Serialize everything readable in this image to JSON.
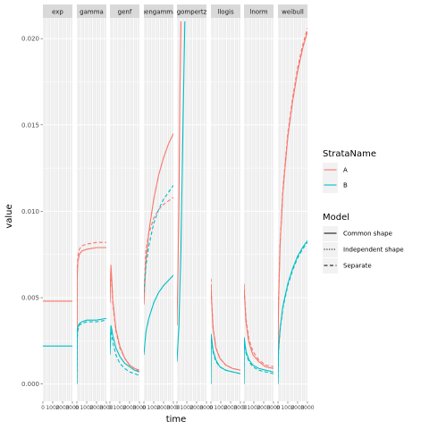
{
  "chart_data": {
    "type": "line",
    "title": "",
    "xlabel": "time",
    "ylabel": "value",
    "ylim": [
      -0.001,
      0.0212
    ],
    "y_ticks": [
      "0.000",
      "0.005",
      "0.010",
      "0.015",
      "0.020"
    ],
    "y_tick_values": [
      0,
      0.005,
      0.01,
      0.015,
      0.02
    ],
    "x_tick_labels": [
      "0",
      "1000",
      "2000",
      "3000"
    ],
    "grid": true,
    "legend_placement": "right",
    "colors": {
      "A": "#F8766D",
      "B": "#00BFC4"
    },
    "legend": {
      "strata_title": "StrataName",
      "strata": [
        "A",
        "B"
      ],
      "model_title": "Model",
      "models": [
        "Common shape",
        "Independent shape",
        "Separate"
      ],
      "model_dash": [
        "",
        "1.2 1.6",
        "4 2.5"
      ]
    },
    "panels": [
      {
        "name": "exp",
        "series": [
          {
            "strata": "A",
            "model": "Common shape",
            "x": [
              0,
              3000
            ],
            "y": [
              0.0048,
              0.0048
            ]
          },
          {
            "strata": "B",
            "model": "Common shape",
            "x": [
              0,
              3000
            ],
            "y": [
              0.0022,
              0.0022
            ]
          }
        ]
      },
      {
        "name": "gamma",
        "series": [
          {
            "strata": "A",
            "model": "Common shape",
            "x": [
              0,
              30,
              100,
              250,
              500,
              1000,
              2000,
              3000
            ],
            "y": [
              0,
              0.0062,
              0.0071,
              0.0075,
              0.0077,
              0.0078,
              0.0079,
              0.0079
            ]
          },
          {
            "strata": "A",
            "model": "Separate",
            "x": [
              0,
              30,
              100,
              250,
              500,
              1000,
              2000,
              3000
            ],
            "y": [
              0,
              0.0065,
              0.0074,
              0.0078,
              0.008,
              0.0081,
              0.0082,
              0.0082
            ]
          },
          {
            "strata": "B",
            "model": "Common shape",
            "x": [
              0,
              30,
              100,
              250,
              500,
              1000,
              2000,
              3000
            ],
            "y": [
              0,
              0.0029,
              0.0033,
              0.0035,
              0.0036,
              0.0037,
              0.0037,
              0.0038
            ]
          },
          {
            "strata": "B",
            "model": "Separate",
            "x": [
              0,
              30,
              100,
              250,
              500,
              1000,
              2000,
              3000
            ],
            "y": [
              0,
              0.0026,
              0.0031,
              0.0034,
              0.0035,
              0.0036,
              0.0036,
              0.0037
            ]
          }
        ]
      },
      {
        "name": "genf",
        "series": [
          {
            "strata": "A",
            "model": "Common shape",
            "x": [
              0,
              100,
              300,
              600,
              1000,
              1500,
              2000,
              2500,
              3000
            ],
            "y": [
              0.0047,
              0.0069,
              0.0048,
              0.0032,
              0.0022,
              0.0015,
              0.0011,
              0.0009,
              0.0008
            ]
          },
          {
            "strata": "A",
            "model": "Separate",
            "x": [
              0,
              100,
              300,
              600,
              1000,
              1500,
              2000,
              2500,
              3000
            ],
            "y": [
              0.0049,
              0.0067,
              0.0046,
              0.0031,
              0.0021,
              0.0015,
              0.0011,
              0.0009,
              0.0007
            ]
          },
          {
            "strata": "B",
            "model": "Common shape",
            "x": [
              0,
              100,
              300,
              600,
              1000,
              1500,
              2000,
              2500,
              3000
            ],
            "y": [
              0.0017,
              0.0034,
              0.0028,
              0.0021,
              0.0016,
              0.0012,
              0.001,
              0.0008,
              0.0007
            ]
          },
          {
            "strata": "B",
            "model": "Separate",
            "x": [
              0,
              100,
              300,
              600,
              1000,
              1500,
              2000,
              2500,
              3000
            ],
            "y": [
              0.0018,
              0.0031,
              0.0024,
              0.0017,
              0.0012,
              0.0009,
              0.0007,
              0.0006,
              0.0005
            ]
          }
        ]
      },
      {
        "name": "gengamma",
        "series": [
          {
            "strata": "A",
            "model": "Common shape",
            "x": [
              0,
              200,
              500,
              1000,
              1500,
              2000,
              2500,
              3000
            ],
            "y": [
              0.0046,
              0.0071,
              0.0088,
              0.0107,
              0.0121,
              0.0131,
              0.0139,
              0.0145
            ]
          },
          {
            "strata": "A",
            "model": "Separate",
            "x": [
              0,
              200,
              500,
              1000,
              1500,
              2000,
              2500,
              3000
            ],
            "y": [
              0.0052,
              0.0077,
              0.0087,
              0.0096,
              0.0101,
              0.0104,
              0.0106,
              0.0108
            ]
          },
          {
            "strata": "B",
            "model": "Common shape",
            "x": [
              0,
              200,
              500,
              1000,
              1500,
              2000,
              2500,
              3000
            ],
            "y": [
              0.0017,
              0.003,
              0.0038,
              0.0047,
              0.0053,
              0.0057,
              0.006,
              0.0063
            ]
          },
          {
            "strata": "B",
            "model": "Separate",
            "x": [
              0,
              200,
              500,
              1000,
              1500,
              2000,
              2500,
              3000
            ],
            "y": [
              0.0053,
              0.0068,
              0.008,
              0.0093,
              0.0101,
              0.0107,
              0.0111,
              0.0115
            ]
          }
        ]
      },
      {
        "name": "gompertz",
        "series": [
          {
            "strata": "A",
            "model": "Common shape",
            "x": [
              0,
              100,
              200,
              300,
              400
            ],
            "y": [
              0.0034,
              0.0064,
              0.0107,
              0.0168,
              0.021
            ]
          },
          {
            "strata": "B",
            "model": "Common shape",
            "x": [
              0,
              200,
              400,
              600,
              800
            ],
            "y": [
              0.0013,
              0.0034,
              0.0077,
              0.0145,
              0.021
            ]
          }
        ]
      },
      {
        "name": "llogis",
        "series": [
          {
            "strata": "A",
            "model": "Common shape",
            "x": [
              0,
              60,
              200,
              500,
              900,
              1500,
              2200,
              3000
            ],
            "y": [
              0.0058,
              0.0049,
              0.0033,
              0.0021,
              0.0015,
              0.0011,
              0.0009,
              0.0008
            ]
          },
          {
            "strata": "A",
            "model": "Separate",
            "x": [
              0,
              60,
              200,
              500,
              900,
              1500,
              2200,
              3000
            ],
            "y": [
              0.0061,
              0.0051,
              0.0034,
              0.0021,
              0.0015,
              0.0011,
              0.0009,
              0.0008
            ]
          },
          {
            "strata": "B",
            "model": "Common shape",
            "x": [
              0,
              20,
              60,
              200,
              500,
              900,
              1500,
              2200,
              3000
            ],
            "y": [
              0,
              0.0029,
              0.0027,
              0.002,
              0.0014,
              0.001,
              0.0008,
              0.0007,
              0.0006
            ]
          },
          {
            "strata": "B",
            "model": "Separate",
            "x": [
              0,
              20,
              60,
              200,
              500,
              900,
              1500,
              2200,
              3000
            ],
            "y": [
              0,
              0.0028,
              0.0026,
              0.0019,
              0.0013,
              0.001,
              0.0008,
              0.0007,
              0.0006
            ]
          }
        ]
      },
      {
        "name": "lnorm",
        "series": [
          {
            "strata": "A",
            "model": "Common shape",
            "x": [
              0,
              60,
              200,
              500,
              900,
              1500,
              2200,
              3000
            ],
            "y": [
              0.0056,
              0.005,
              0.0036,
              0.0024,
              0.0017,
              0.0013,
              0.001,
              0.0009
            ]
          },
          {
            "strata": "A",
            "model": "Separate",
            "x": [
              0,
              60,
              200,
              500,
              900,
              1500,
              2200,
              3000
            ],
            "y": [
              0.0058,
              0.0052,
              0.0038,
              0.0026,
              0.0019,
              0.0014,
              0.0011,
              0.001
            ]
          },
          {
            "strata": "B",
            "model": "Common shape",
            "x": [
              0,
              20,
              60,
              200,
              500,
              900,
              1500,
              2200,
              3000
            ],
            "y": [
              0,
              0.0027,
              0.0025,
              0.0019,
              0.0014,
              0.0011,
              0.0009,
              0.0008,
              0.0007
            ]
          },
          {
            "strata": "B",
            "model": "Separate",
            "x": [
              0,
              20,
              60,
              200,
              500,
              900,
              1500,
              2200,
              3000
            ],
            "y": [
              0,
              0.0026,
              0.0024,
              0.0018,
              0.0013,
              0.001,
              0.0008,
              0.0007,
              0.0006
            ]
          }
        ]
      },
      {
        "name": "weibull",
        "series": [
          {
            "strata": "A",
            "model": "Common shape",
            "x": [
              0,
              50,
              200,
              500,
              1000,
              1500,
              2000,
              2500,
              3000
            ],
            "y": [
              0.0015,
              0.0045,
              0.0078,
              0.0111,
              0.0143,
              0.0164,
              0.0181,
              0.0194,
              0.0204
            ]
          },
          {
            "strata": "A",
            "model": "Separate",
            "x": [
              0,
              50,
              200,
              500,
              1000,
              1500,
              2000,
              2500,
              3000
            ],
            "y": [
              0.0015,
              0.0047,
              0.008,
              0.0113,
              0.0145,
              0.0166,
              0.0183,
              0.0196,
              0.0206
            ]
          },
          {
            "strata": "B",
            "model": "Common shape",
            "x": [
              0,
              50,
              200,
              500,
              1000,
              1500,
              2000,
              2500,
              3000
            ],
            "y": [
              0,
              0.0019,
              0.0031,
              0.0045,
              0.0058,
              0.0067,
              0.0074,
              0.0079,
              0.0083
            ]
          },
          {
            "strata": "B",
            "model": "Separate",
            "x": [
              0,
              50,
              200,
              500,
              1000,
              1500,
              2000,
              2500,
              3000
            ],
            "y": [
              0,
              0.0018,
              0.003,
              0.0044,
              0.0057,
              0.0066,
              0.0073,
              0.0078,
              0.0082
            ]
          }
        ]
      }
    ]
  }
}
